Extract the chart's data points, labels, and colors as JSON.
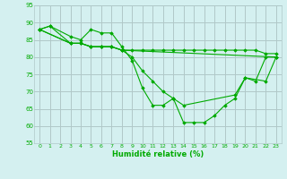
{
  "xlabel": "Humidité relative (%)",
  "background_color": "#d4f0f0",
  "grid_color": "#b0c8c8",
  "line_color": "#00aa00",
  "xlim": [
    -0.5,
    23.5
  ],
  "ylim": [
    55,
    95
  ],
  "yticks": [
    55,
    60,
    65,
    70,
    75,
    80,
    85,
    90,
    95
  ],
  "xticks": [
    0,
    1,
    2,
    3,
    4,
    5,
    6,
    7,
    8,
    9,
    10,
    11,
    12,
    13,
    14,
    15,
    16,
    17,
    18,
    19,
    20,
    21,
    22,
    23
  ],
  "lines": [
    {
      "x": [
        0,
        1,
        3,
        4,
        5,
        6,
        7,
        8,
        9,
        10,
        11,
        12,
        13,
        14,
        15,
        16,
        17,
        18,
        19,
        20,
        21,
        22,
        23
      ],
      "y": [
        88,
        89,
        86,
        85,
        88,
        87,
        87,
        83,
        79,
        71,
        66,
        66,
        68,
        61,
        61,
        61,
        63,
        66,
        68,
        74,
        73,
        80,
        80
      ]
    },
    {
      "x": [
        0,
        3,
        4,
        5,
        6,
        7,
        8,
        9,
        10,
        11,
        12,
        13,
        14,
        15,
        16,
        17,
        18,
        19,
        20,
        21,
        22,
        23
      ],
      "y": [
        88,
        84,
        84,
        83,
        83,
        83,
        82,
        82,
        82,
        82,
        82,
        82,
        82,
        82,
        82,
        82,
        82,
        82,
        82,
        82,
        81,
        81
      ]
    },
    {
      "x": [
        0,
        3,
        4,
        5,
        6,
        7,
        8,
        9,
        10,
        11,
        12,
        13,
        14,
        19,
        20,
        22,
        23
      ],
      "y": [
        88,
        84,
        84,
        83,
        83,
        83,
        82,
        80,
        76,
        73,
        70,
        68,
        66,
        69,
        74,
        73,
        80
      ]
    },
    {
      "x": [
        0,
        1,
        3,
        4,
        5,
        6,
        7,
        8,
        23
      ],
      "y": [
        88,
        89,
        84,
        84,
        83,
        83,
        83,
        82,
        80
      ]
    }
  ]
}
